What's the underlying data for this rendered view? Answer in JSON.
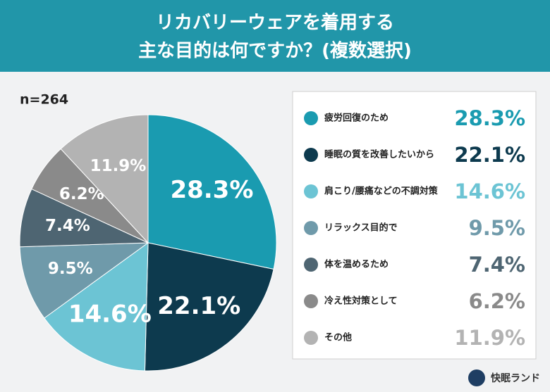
{
  "chart_data": {
    "type": "pie",
    "title": [
      "リカバリーウェアを着用する",
      "主な目的は何ですか？(複数選択)"
    ],
    "note": "n=264",
    "brand": "快眠ランド",
    "categories": [
      "疲労回復のため",
      "睡眠の質を改善したいから",
      "肩こり/腰痛などの不調対策",
      "リラックス目的で",
      "体を温めるため",
      "冷え性対策として",
      "その他"
    ],
    "values": [
      28.3,
      22.1,
      14.6,
      9.5,
      7.4,
      6.2,
      11.9
    ],
    "value_labels": [
      "28.3%",
      "22.1%",
      "14.6%",
      "9.5%",
      "7.4%",
      "6.2%",
      "11.9%"
    ],
    "colors": [
      "#1a9bb0",
      "#0d3a4e",
      "#6cc4d4",
      "#6f9aaa",
      "#4e6572",
      "#8a8a8a",
      "#b3b3b3"
    ]
  }
}
